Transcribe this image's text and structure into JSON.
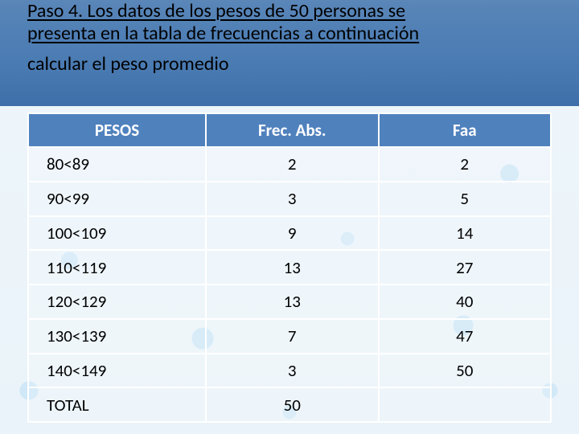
{
  "title": {
    "line1": "Paso 4. Los datos de los pesos de 50 personas se",
    "line2": "presenta en la tabla de frecuencias a continuación",
    "sub": "calcular el peso promedio"
  },
  "table": {
    "type": "table",
    "header_bg": "#4f81bd",
    "header_fg": "#ffffff",
    "border_color": "#ffffff",
    "cell_fontsize": 21,
    "header_fontsize": 21,
    "columns": [
      "PESOS",
      "Frec. Abs.",
      "Faa"
    ],
    "col_widths_pct": [
      34,
      33,
      33
    ],
    "rows": [
      [
        "80<89",
        "2",
        "2"
      ],
      [
        "90<99",
        "3",
        "5"
      ],
      [
        "100<109",
        "9",
        "14"
      ],
      [
        "110<119",
        "13",
        "27"
      ],
      [
        "120<129",
        "13",
        "40"
      ],
      [
        "130<139",
        "7",
        "47"
      ],
      [
        "140<149",
        "3",
        "50"
      ],
      [
        "TOTAL",
        "50",
        ""
      ]
    ]
  },
  "colors": {
    "band_gradient_top": "#5a86b8",
    "band_gradient_bottom": "#3f6fa8",
    "background_base": "#eef6fb",
    "droplet": "#b4dcf5"
  }
}
